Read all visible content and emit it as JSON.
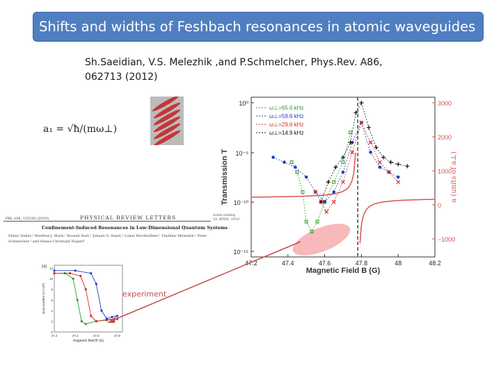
{
  "slide": {
    "title": "Shifts and widths of Feshbach resonances in atomic waveguides",
    "citation_line1": "Sh.Saeidian, V.S. Melezhik ,and P.Schmelcher, Phys.Rev. A86,",
    "citation_line2": "062713 (2012)",
    "formula": "a₁ = √ħ/(mω⊥)",
    "experiment_label": "experiment"
  },
  "prl": {
    "cite": "PRL 104, 153203 (2010)",
    "journal": "PHYSICAL REVIEW LETTERS",
    "week": "week ending 16 APRIL 2010",
    "title": "Confinement-Induced Resonances in Low-Dimensional Quantum Systems",
    "authors": "Elmar Haller,¹ Manfred J. Mark,¹ Russell Hart,¹ Johann G. Danzl,¹ Lukas Reichsöllner,¹ Vladimir Melezhik,² Peter Schmelcher,³ and Hanns-Christoph Nägerl¹"
  },
  "colors": {
    "title_bg": "#4f7fc1",
    "highlight": "#f08080",
    "arrow": "#c0504d",
    "red_curve": "#d9534f"
  },
  "chart_data": [
    {
      "type": "line",
      "xlabel": "Magnetic Field B (G)",
      "ylabel": "Transmission T",
      "y2label": "a (units of a⊥)",
      "x_ticks": [
        "47.2",
        "47.4",
        "47.6",
        "47.8",
        "48",
        "48.2"
      ],
      "y_ticks": [
        "10⁰",
        "10⁻⁵",
        "10⁻¹⁰",
        "10⁻¹⁵"
      ],
      "y2_ticks": [
        "3000",
        "2000",
        "1000",
        "0",
        "−1000"
      ],
      "xlim": [
        47.2,
        48.2
      ],
      "resonance_B": 47.78,
      "legend": [
        "ω⊥=65.6 kHz",
        "ω⊥=59.6 kHz",
        "ω⊥=29.6 kHz",
        "ω⊥=14.9 kHz"
      ],
      "series": [
        {
          "name": "ω⊥=65.6 kHz",
          "color": "#2ca02c",
          "x": [
            47.42,
            47.45,
            47.48,
            47.5,
            47.53,
            47.56,
            47.6,
            47.65,
            47.7,
            47.74
          ],
          "y": [
            -6,
            -7,
            -9,
            -12,
            -13,
            -12,
            -10,
            -8,
            -6,
            -3
          ]
        },
        {
          "name": "ω⊥=59.6 kHz",
          "color": "#1f3fbf",
          "x": [
            47.32,
            47.38,
            47.44,
            47.5,
            47.55,
            47.6,
            47.65,
            47.7,
            47.75,
            47.8,
            47.85,
            47.9,
            47.95,
            48.0
          ],
          "y": [
            -5.5,
            -6,
            -6.5,
            -7.5,
            -9,
            -10,
            -9,
            -7,
            -4,
            -2,
            -5,
            -6.5,
            -7,
            -7.5
          ]
        },
        {
          "name": "ω⊥=29.6 kHz",
          "color": "#d62728",
          "x": [
            47.55,
            47.58,
            47.61,
            47.65,
            47.7,
            47.75,
            47.8,
            47.85,
            47.9,
            47.95,
            48.0
          ],
          "y": [
            -9,
            -10,
            -11,
            -10,
            -8,
            -5,
            -2,
            -4,
            -6,
            -7,
            -8
          ]
        },
        {
          "name": "ω⊥=14.9 kHz",
          "color": "#111111",
          "x": [
            47.58,
            47.62,
            47.66,
            47.7,
            47.74,
            47.77,
            47.8,
            47.84,
            47.88,
            47.92,
            47.96,
            48.0,
            48.05
          ],
          "y": [
            -10,
            -8,
            -6.5,
            -5.5,
            -4,
            -1,
            0,
            -2.5,
            -4.5,
            -5.5,
            -6,
            -6.2,
            -6.4
          ]
        }
      ]
    },
    {
      "type": "line",
      "xlabel": "magnetic field B (G)",
      "ylabel": "atom number N (×10³)",
      "x_ticks": [
        "47.2",
        "47.4",
        "47.6",
        "47.8"
      ],
      "y_ticks": [
        "12",
        "10",
        "8",
        "6",
        "4",
        "2",
        "0"
      ],
      "panel_label": "(a)",
      "series": [
        {
          "name": "green",
          "color": "#2ca02c",
          "x": [
            47.2,
            47.3,
            47.38,
            47.42,
            47.46,
            47.5,
            47.6,
            47.7,
            47.8
          ],
          "y": [
            11,
            11,
            10,
            6,
            2,
            1.5,
            2,
            2.2,
            2.4
          ]
        },
        {
          "name": "red",
          "color": "#d62728",
          "x": [
            47.2,
            47.35,
            47.45,
            47.5,
            47.55,
            47.6,
            47.7,
            47.8
          ],
          "y": [
            11,
            11,
            10.5,
            8,
            3,
            2,
            2.3,
            2.5
          ]
        },
        {
          "name": "blue",
          "color": "#1f3fbf",
          "x": [
            47.2,
            47.4,
            47.55,
            47.6,
            47.65,
            47.7,
            47.75,
            47.8
          ],
          "y": [
            11.5,
            11.5,
            11,
            9,
            4,
            2.5,
            2.8,
            3
          ]
        }
      ]
    }
  ]
}
